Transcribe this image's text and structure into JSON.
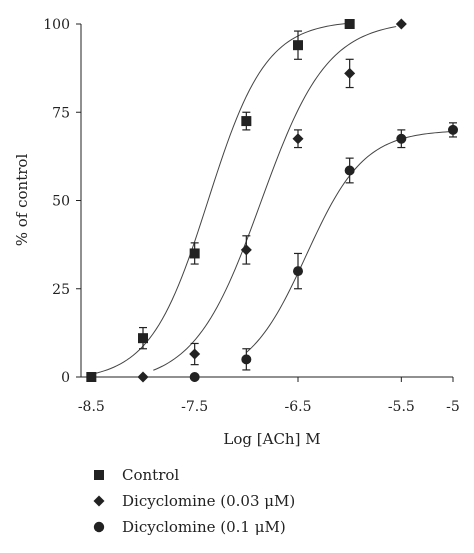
{
  "chart_data": {
    "type": "scatter",
    "xlabel": "Log [ACh] M",
    "ylabel": "% of control",
    "xlim": [
      -8.6,
      -5
    ],
    "ylim": [
      0,
      100
    ],
    "x_ticks": [
      -8.5,
      -7.5,
      -6.5,
      -5.5,
      -5
    ],
    "x_tick_labels": [
      "-8.5",
      "-7.5",
      "-6.5",
      "-5.5",
      "-5"
    ],
    "y_ticks": [
      0,
      25,
      50,
      75,
      100
    ],
    "y_tick_labels": [
      "0",
      "25",
      "50",
      "75",
      "100"
    ],
    "grid": false,
    "legend_position": "bottom-left",
    "series": [
      {
        "name": "Control",
        "marker": "square",
        "color": "#222222",
        "points": [
          {
            "x": -8.5,
            "y": 0,
            "err": 0
          },
          {
            "x": -8.0,
            "y": 11,
            "err": 3
          },
          {
            "x": -7.5,
            "y": 35,
            "err": 3
          },
          {
            "x": -7.0,
            "y": 72.5,
            "err": 2.5
          },
          {
            "x": -6.5,
            "y": 94,
            "err": 4
          },
          {
            "x": -6.0,
            "y": 100,
            "err": 0
          }
        ],
        "fit": {
          "bottom": -1,
          "top": 101,
          "logec50": -7.37,
          "hill": 1.55,
          "x_range": [
            -8.5,
            -6.0
          ]
        }
      },
      {
        "name": "Dicyclomine (0.03 μM)",
        "marker": "diamond",
        "color": "#222222",
        "points": [
          {
            "x": -8.0,
            "y": 0,
            "err": 0
          },
          {
            "x": -7.5,
            "y": 6.5,
            "err": 3
          },
          {
            "x": -7.0,
            "y": 36,
            "err": 4
          },
          {
            "x": -6.5,
            "y": 67.5,
            "err": 2.5
          },
          {
            "x": -6.0,
            "y": 86,
            "err": 4
          },
          {
            "x": -5.5,
            "y": 100,
            "err": 0
          }
        ],
        "fit": {
          "bottom": -2,
          "top": 101,
          "logec50": -6.86,
          "hill": 1.35,
          "x_range": [
            -7.9,
            -5.55
          ]
        }
      },
      {
        "name": "Dicyclomine (0.1 μM)",
        "marker": "circle",
        "color": "#222222",
        "points": [
          {
            "x": -7.5,
            "y": 0,
            "err": 0
          },
          {
            "x": -7.0,
            "y": 5,
            "err": 3
          },
          {
            "x": -6.5,
            "y": 30,
            "err": 5
          },
          {
            "x": -6.0,
            "y": 58.5,
            "err": 3.5
          },
          {
            "x": -5.5,
            "y": 67.5,
            "err": 2.5
          },
          {
            "x": -5.0,
            "y": 70,
            "err": 2
          }
        ],
        "fit": {
          "bottom": -1,
          "top": 70,
          "logec50": -6.42,
          "hill": 1.55,
          "x_range": [
            -7.0,
            -5.0
          ]
        }
      }
    ]
  },
  "legend": {
    "items": [
      {
        "label": "Control"
      },
      {
        "label": "Dicyclomine (0.03 μM)"
      },
      {
        "label": "Dicyclomine (0.1 μM)"
      }
    ]
  }
}
